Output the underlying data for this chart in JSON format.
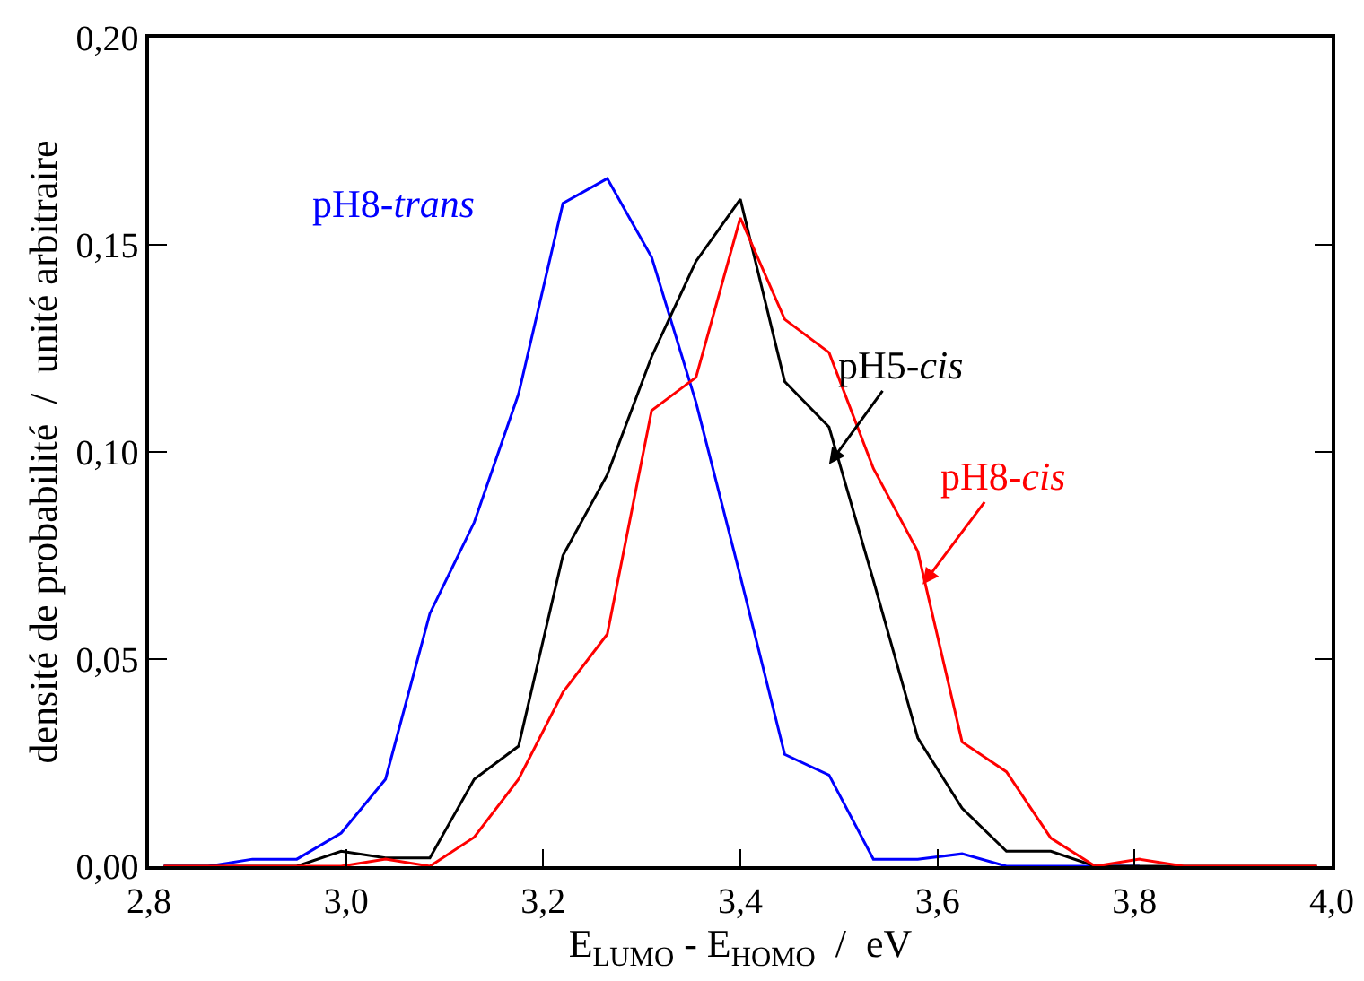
{
  "chart_data": {
    "type": "line",
    "xlabel": "E$_{LUMO}$ - E$_{HOMO}$  /  eV",
    "ylabel": "densité de probabilité  /  unité arbitraire",
    "x": [
      2.815,
      2.86,
      2.905,
      2.95,
      2.995,
      3.04,
      3.085,
      3.13,
      3.175,
      3.22,
      3.265,
      3.31,
      3.355,
      3.4,
      3.445,
      3.49,
      3.535,
      3.58,
      3.625,
      3.67,
      3.715,
      3.76,
      3.805,
      3.85,
      3.895,
      3.94,
      3.985
    ],
    "series": [
      {
        "color": "#0000ff",
        "values": [
          0,
          0,
          0.0017,
          0.0017,
          0.008,
          0.021,
          0.061,
          0.083,
          0.114,
          0.16,
          0.166,
          0.147,
          0.112,
          0.07,
          0.027,
          0.022,
          0.0017,
          0.0017,
          0.003,
          0,
          0,
          0,
          0,
          null,
          null,
          null,
          null
        ]
      },
      {
        "color": "#000000",
        "values": [
          0,
          0,
          0,
          0,
          0.0036,
          0.002,
          0.002,
          0.021,
          0.029,
          0.075,
          0.0945,
          0.123,
          0.146,
          0.161,
          0.117,
          0.106,
          0.069,
          0.031,
          0.014,
          0.0036,
          0.0036,
          0,
          0,
          0,
          0,
          0,
          0
        ]
      },
      {
        "color": "#ff0000",
        "values": [
          0,
          0,
          0,
          0,
          0,
          0.0017,
          0,
          0.007,
          0.021,
          0.042,
          0.056,
          0.11,
          0.118,
          0.1565,
          0.132,
          0.124,
          0.096,
          0.076,
          0.03,
          0.0228,
          0.0068,
          0,
          0.0017,
          0,
          0,
          0,
          0
        ]
      }
    ],
    "annotations": [
      {
        "text": "pH8-trans",
        "x": 3.22,
        "y": 0.16
      },
      {
        "text": "pH5-cis",
        "x": 3.49,
        "y": 0.097
      },
      {
        "text": "pH8-cis",
        "x": 3.585,
        "y": 0.068
      }
    ],
    "xlim": [
      2.8,
      4.0
    ],
    "ylim": [
      0,
      0.2
    ],
    "xticks": [
      {
        "value": 2.8,
        "label": "2,8"
      },
      {
        "value": 3.0,
        "label": "3,0"
      },
      {
        "value": 3.2,
        "label": "3,2"
      },
      {
        "value": 3.4,
        "label": "3,4"
      },
      {
        "value": 3.6,
        "label": "3,6"
      },
      {
        "value": 3.8,
        "label": "3,8"
      },
      {
        "value": 4.0,
        "label": "4,0"
      }
    ],
    "yticks": [
      {
        "value": 0,
        "label": "0,00"
      },
      {
        "value": 0.05,
        "label": "0,05"
      },
      {
        "value": 0.1,
        "label": "0,10"
      },
      {
        "value": 0.15,
        "label": "0,15"
      },
      {
        "value": 0.2,
        "label": "0,20"
      }
    ],
    "marker": "none",
    "line_style": "solid"
  }
}
